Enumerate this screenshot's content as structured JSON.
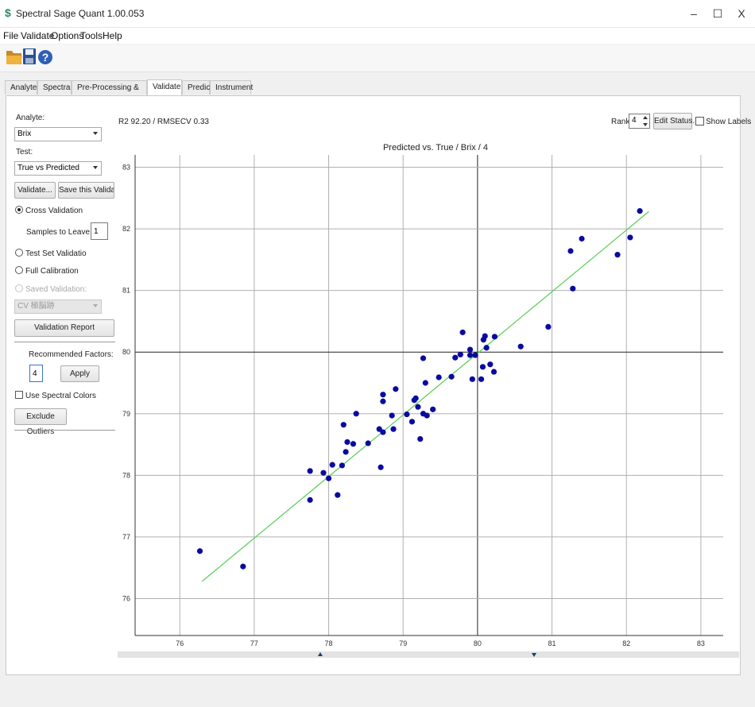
{
  "window": {
    "title": "Spectral Sage Quant 1.00.053",
    "minimize": "–",
    "maximize": "☐",
    "close": "X"
  },
  "menu": [
    "File",
    "Validate",
    "Options",
    "Tools",
    "Help"
  ],
  "toolbar": {
    "icons": [
      "open-folder-icon",
      "save-disk-icon",
      "help-icon"
    ],
    "help_glyph": "?"
  },
  "tabs": [
    {
      "label": "Analytes"
    },
    {
      "label": "Spectra"
    },
    {
      "label": "Pre-Processing & Regions"
    },
    {
      "label": "Validate",
      "active": true
    },
    {
      "label": "Predict"
    },
    {
      "label": "Instrument"
    }
  ],
  "left_panel": {
    "analyte_label": "Analyte:",
    "analyte_value": "Brix",
    "test_label": "Test:",
    "test_value": "True vs Predicted",
    "validate_button": "Validate...",
    "save_validation_button": "Save this Validation...",
    "cross_validation": "Cross Validation",
    "samples_label": "Samples to Leave Out:",
    "samples_value": "1",
    "test_set": "Test Set Validatio",
    "full_calibration": "Full Calibration",
    "saved_validation": "Saved Validation:",
    "saved_validation_value": "CV 極脳跡",
    "report_button": "Validation Report",
    "recommended_label": "Recommended Factors:",
    "factors_value": "4",
    "apply_button": "Apply",
    "spectral_colors": "Use Spectral Colors",
    "exclude_button": "Exclude Outliers"
  },
  "top_bar": {
    "stats": "R2 92.20 / RMSECV 0.33",
    "rank_label": "Rank:",
    "rank_value": "4",
    "edit_status_button": "Edit Status...",
    "show_labels": "Show Labels"
  },
  "colors": {
    "points": "#0a0aa0",
    "fit_line": "#55cc55",
    "grid": "#b0b0b0",
    "axis_center": "#222222"
  },
  "chart_data": {
    "type": "scatter",
    "title": "Predicted vs. True / Brix / 4",
    "xlabel": "",
    "ylabel": "",
    "xlim": [
      75.4,
      83.3
    ],
    "ylim": [
      75.4,
      83.2
    ],
    "xticks": [
      76,
      77,
      78,
      79,
      80,
      81,
      82,
      83
    ],
    "yticks": [
      76,
      77,
      78,
      79,
      80,
      81,
      82,
      83
    ],
    "grid": true,
    "fit_line": {
      "x": [
        76.3,
        82.3
      ],
      "y": [
        76.28,
        82.28
      ]
    },
    "points": [
      [
        76.27,
        76.77
      ],
      [
        76.85,
        76.52
      ],
      [
        77.75,
        77.6
      ],
      [
        77.75,
        78.07
      ],
      [
        77.93,
        78.04
      ],
      [
        78.0,
        77.95
      ],
      [
        78.05,
        78.17
      ],
      [
        78.12,
        77.68
      ],
      [
        78.18,
        78.16
      ],
      [
        78.2,
        78.82
      ],
      [
        78.23,
        78.38
      ],
      [
        78.25,
        78.54
      ],
      [
        78.33,
        78.51
      ],
      [
        78.37,
        79.0
      ],
      [
        78.53,
        78.52
      ],
      [
        78.68,
        78.75
      ],
      [
        78.7,
        78.13
      ],
      [
        78.73,
        78.7
      ],
      [
        78.73,
        79.2
      ],
      [
        78.73,
        79.31
      ],
      [
        78.85,
        78.97
      ],
      [
        78.87,
        78.75
      ],
      [
        78.9,
        79.4
      ],
      [
        79.05,
        78.99
      ],
      [
        79.12,
        78.87
      ],
      [
        79.15,
        79.22
      ],
      [
        79.17,
        79.25
      ],
      [
        79.2,
        79.11
      ],
      [
        79.23,
        78.59
      ],
      [
        79.27,
        79.0
      ],
      [
        79.27,
        79.9
      ],
      [
        79.3,
        79.5
      ],
      [
        79.32,
        78.97
      ],
      [
        79.4,
        79.07
      ],
      [
        79.48,
        79.59
      ],
      [
        79.65,
        79.6
      ],
      [
        79.7,
        79.91
      ],
      [
        79.77,
        79.96
      ],
      [
        79.8,
        80.32
      ],
      [
        79.9,
        79.95
      ],
      [
        79.9,
        80.04
      ],
      [
        79.93,
        79.56
      ],
      [
        79.97,
        79.95
      ],
      [
        80.05,
        79.56
      ],
      [
        80.07,
        79.76
      ],
      [
        80.08,
        80.2
      ],
      [
        80.1,
        80.26
      ],
      [
        80.12,
        80.07
      ],
      [
        80.17,
        79.8
      ],
      [
        80.22,
        79.68
      ],
      [
        80.23,
        80.25
      ],
      [
        80.58,
        80.09
      ],
      [
        80.95,
        80.41
      ],
      [
        81.25,
        81.64
      ],
      [
        81.28,
        81.03
      ],
      [
        81.4,
        81.84
      ],
      [
        81.88,
        81.58
      ],
      [
        82.05,
        81.86
      ],
      [
        82.18,
        82.29
      ]
    ]
  }
}
